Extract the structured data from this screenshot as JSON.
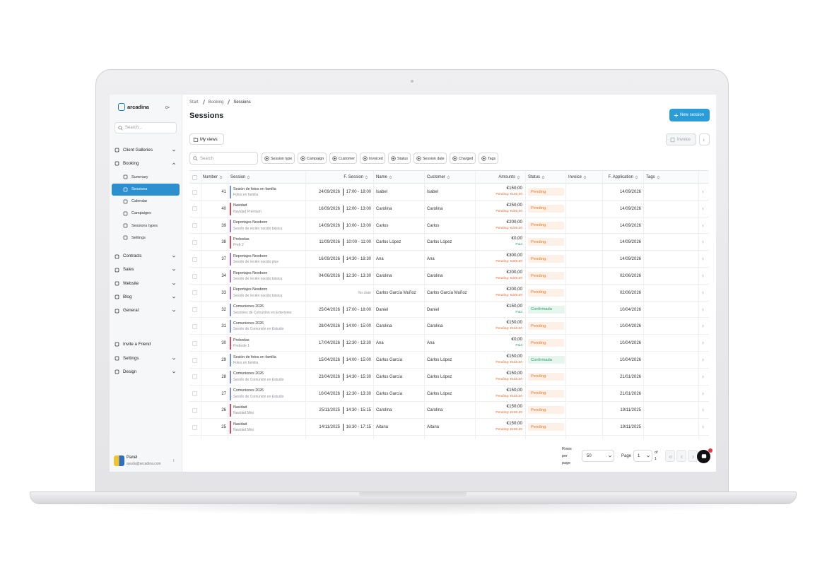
{
  "sidebar": {
    "brand": "arcadina",
    "search_placeholder": "Search...",
    "nav": [
      {
        "label": "Client Galleries"
      },
      {
        "label": "Booking",
        "expanded": true,
        "children": [
          {
            "label": "Summary"
          },
          {
            "label": "Sessions",
            "active": true
          },
          {
            "label": "Calendar"
          },
          {
            "label": "Campaigns"
          },
          {
            "label": "Sessions types"
          },
          {
            "label": "Settings"
          }
        ]
      },
      {
        "label": "Contracts"
      },
      {
        "label": "Sales"
      },
      {
        "label": "Website"
      },
      {
        "label": "Blog"
      },
      {
        "label": "General"
      }
    ],
    "nav_bottom": [
      {
        "label": "Invite a Friend",
        "chevron": false
      },
      {
        "label": "Settings",
        "chevron": true
      },
      {
        "label": "Design",
        "chevron": true
      }
    ],
    "user": {
      "name": "Panel",
      "email": "ayuda@arcadina.com"
    }
  },
  "main": {
    "breadcrumb": [
      "Start",
      "Booking",
      "Sessions"
    ],
    "title": "Sessions",
    "new_button": "New session",
    "my_views": "My views",
    "invoice_button": "Invoice",
    "search_placeholder": "Search",
    "filters": [
      "Session type",
      "Campaign",
      "Customer",
      "Invoiced",
      "Status",
      "Session date",
      "Charged",
      "Tags"
    ],
    "table": {
      "columns": [
        "Number",
        "Session",
        "F. Session",
        "Name",
        "Customer",
        "Amounts",
        "Status",
        "Invoice",
        "F. Application",
        "Tags"
      ],
      "rows": [
        {
          "number": "41",
          "color": "#6f8ff2",
          "session": "Sesión de fotos en familia",
          "session_type": "Fotos en familia",
          "date": "24/09/2026",
          "time": "17:00 - 18:00",
          "name": "Isabel",
          "customer": "Isabel",
          "amount": "€150,00",
          "amount_status": "Pending: €150,00",
          "status": "Pending",
          "application": "14/09/2026"
        },
        {
          "number": "40",
          "color": "#e0455a",
          "session": "Navidad",
          "session_type": "Navidad Premium",
          "date": "16/09/2026",
          "time": "12:00 - 13:00",
          "name": "Carolina",
          "customer": "Carolina",
          "amount": "€250,00",
          "amount_status": "Pending: €250,00",
          "status": "Pending",
          "application": "14/09/2026"
        },
        {
          "number": "39",
          "color": "#a66ce0",
          "session": "Reportajes Newborn",
          "session_type": "Sesión de recién nacido básica",
          "date": "14/09/2026",
          "time": "10:00 - 13:00",
          "name": "Carlos",
          "customer": "Carlos",
          "amount": "€200,00",
          "amount_status": "Pending: €200,00",
          "status": "Pending",
          "application": "14/09/2026"
        },
        {
          "number": "38",
          "color": "#e0455a",
          "session": "Prebodas",
          "session_type": "Preb 2",
          "date": "11/09/2026",
          "time": "10:00 - 11:00",
          "name": "Carlos López",
          "customer": "Carlos López",
          "amount": "€0,00",
          "amount_status": "Paid",
          "status": "Pending",
          "application": "14/09/2026"
        },
        {
          "number": "37",
          "color": "#a66ce0",
          "session": "Reportajes Newborn",
          "session_type": "Sesión de recién nacido plus",
          "date": "16/09/2026",
          "time": "14:30 - 18:30",
          "name": "Ana",
          "customer": "Ana",
          "amount": "€300,00",
          "amount_status": "Pending: €300,00",
          "status": "Pending",
          "application": "14/09/2026"
        },
        {
          "number": "34",
          "color": "#a66ce0",
          "session": "Reportajes Newborn",
          "session_type": "Sesión de recién nacido básica",
          "date": "04/06/2026",
          "time": "12:30 - 13:30",
          "name": "Carolina",
          "customer": "Carolina",
          "amount": "€200,00",
          "amount_status": "Pending: €200,00",
          "status": "Pending",
          "application": "02/06/2026"
        },
        {
          "number": "33",
          "color": "#a66ce0",
          "session": "Reportajes Newborn",
          "session_type": "Sesión de recién nacido básica",
          "no_date": "No date",
          "name": "Carlos García Muñoz",
          "customer": "Carlos García Muñoz",
          "amount": "€200,00",
          "amount_status": "Pending: €200,00",
          "status": "Pending",
          "application": "02/06/2026"
        },
        {
          "number": "32",
          "color": "#7b86e8",
          "session": "Comuniones 2026",
          "session_type": "Sesiones de Comunión en Exteriores",
          "date": "25/04/2026",
          "time": "17:00 - 18:00",
          "name": "Daniel",
          "customer": "Daniel",
          "amount": "€150,00",
          "amount_status": "Paid",
          "status": "Confirmada",
          "application": "10/04/2026"
        },
        {
          "number": "31",
          "color": "#7b86e8",
          "session": "Comuniones 2026",
          "session_type": "Sesión de Comunión en Estudio",
          "date": "28/04/2026",
          "time": "14:00 - 15:00",
          "name": "Carolina",
          "customer": "Carolina",
          "amount": "€150,00",
          "amount_status": "Pending: €150,00",
          "status": "Pending",
          "application": "10/04/2026"
        },
        {
          "number": "30",
          "color": "#e0455a",
          "session": "Prebodas",
          "session_type": "Prebode 1",
          "date": "17/04/2026",
          "time": "12:30 - 13:30",
          "name": "Ana",
          "customer": "Ana",
          "amount": "€0,00",
          "amount_status": "Paid",
          "status": "Pending",
          "application": "10/04/2026"
        },
        {
          "number": "29",
          "color": "#6f8ff2",
          "session": "Sesión de fotos en familia",
          "session_type": "Fotos en familia",
          "date": "15/04/2026",
          "time": "14:00 - 15:00",
          "name": "Carlos García",
          "customer": "Carlos López",
          "amount": "€150,00",
          "amount_status": "Pending: €150,00",
          "status": "Confirmada",
          "application": "10/04/2026"
        },
        {
          "number": "28",
          "color": "#7b86e8",
          "session": "Comuniones 2026",
          "session_type": "Sesión de Comunión en Estudio",
          "date": "23/04/2026",
          "time": "14:30 - 15:30",
          "name": "Carlos García",
          "customer": "Carlos López",
          "amount": "€150,00",
          "amount_status": "Pending: €150,00",
          "status": "Pending",
          "application": "21/01/2026"
        },
        {
          "number": "27",
          "color": "#7b86e8",
          "session": "Comuniones 2026",
          "session_type": "Sesión de Comunión en Estudio",
          "date": "10/04/2026",
          "time": "12:30 - 13:30",
          "name": "Carlos García",
          "customer": "Carlos López",
          "amount": "€150,00",
          "amount_status": "Pending: €150,00",
          "status": "Pending",
          "application": "21/01/2026"
        },
        {
          "number": "26",
          "color": "#e0455a",
          "session": "Navidad",
          "session_type": "Navidad Mini",
          "date": "25/11/2025",
          "time": "14:30 - 15:15",
          "name": "Carolina",
          "customer": "Carolina",
          "amount": "€150,00",
          "amount_status": "Pending: €150,00",
          "status": "Pending",
          "application": "19/11/2025"
        },
        {
          "number": "25",
          "color": "#e0455a",
          "session": "Navidad",
          "session_type": "Navidad Mini",
          "date": "14/11/2025",
          "time": "16:30 - 17:15",
          "name": "Aitana",
          "customer": "Aitana",
          "amount": "€150,00",
          "amount_status": "Pending: €150,00",
          "status": "Pending",
          "application": "19/11/2025"
        }
      ]
    },
    "pagination": {
      "rows_per_page": "Rows per page",
      "rows_value": "50",
      "page_label": "Page",
      "page_value": "1",
      "of": "of",
      "total": "1"
    }
  }
}
